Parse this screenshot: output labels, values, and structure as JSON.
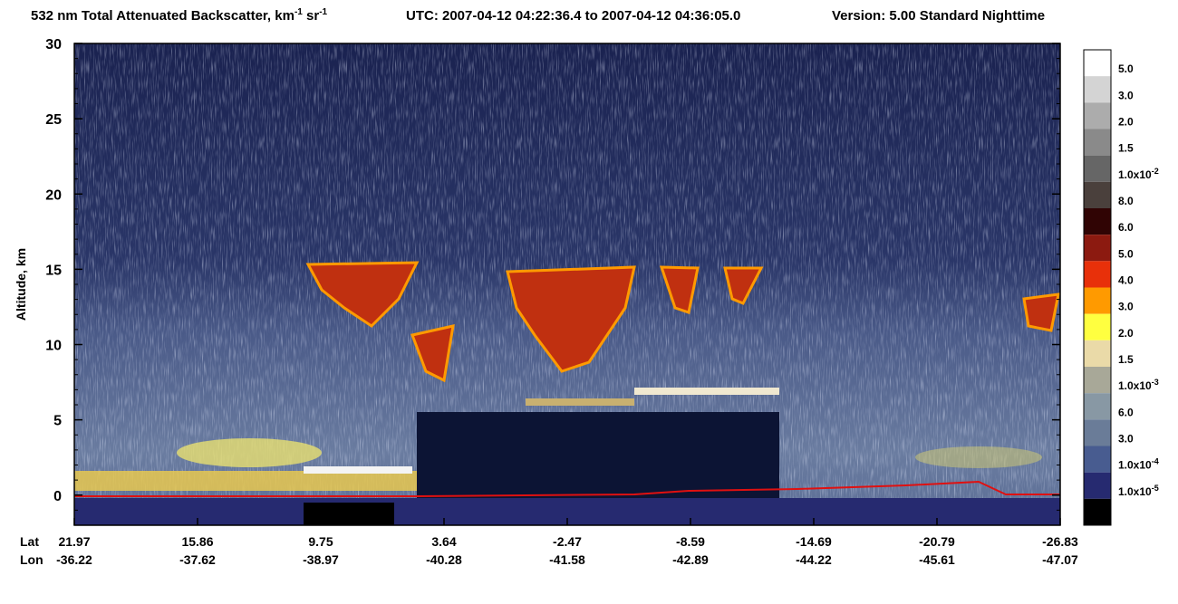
{
  "chart_data": {
    "type": "curtain",
    "title": [
      "532 nm Total Attenuated Backscatter, km",
      "-1",
      " sr",
      "-1"
    ],
    "time_range": "UTC:  2007-04-12 04:22:36.4  to  2007-04-12 04:36:05.0",
    "version": "Version: 5.00  Standard  Nighttime",
    "y_label": "Altitude, km",
    "ylim": [
      -2,
      30
    ],
    "yticks": [
      0,
      5,
      10,
      15,
      20,
      25,
      30
    ],
    "x_row_labels": [
      "Lat",
      "Lon"
    ],
    "lat": [
      "21.97",
      "15.86",
      "9.75",
      "3.64",
      "-2.47",
      "-8.59",
      "-14.69",
      "-20.79",
      "-26.83"
    ],
    "lon": [
      "-36.22",
      "-37.62",
      "-38.97",
      "-40.28",
      "-41.58",
      "-42.89",
      "-44.22",
      "-45.61",
      "-47.07"
    ],
    "colorbar": {
      "colors": [
        "#ffffff",
        "#d4d4d4",
        "#acacac",
        "#8a8a8a",
        "#666666",
        "#4a403c",
        "#300404",
        "#8c1a10",
        "#e8300a",
        "#ff9a00",
        "#ffff40",
        "#eadaa8",
        "#a8a898",
        "#8898a4",
        "#6a7c98",
        "#485c90",
        "#262a70",
        "#000000"
      ],
      "labels": [
        {
          "text": "5.0"
        },
        {
          "text": "3.0"
        },
        {
          "text": "2.0"
        },
        {
          "text": "1.5"
        },
        {
          "text": "1.0x10",
          "sup": "-2"
        },
        {
          "text": "8.0"
        },
        {
          "text": "6.0"
        },
        {
          "text": "5.0"
        },
        {
          "text": "4.0"
        },
        {
          "text": "3.0"
        },
        {
          "text": "2.0"
        },
        {
          "text": "1.5"
        },
        {
          "text": "1.0x10",
          "sup": "-3"
        },
        {
          "text": "6.0"
        },
        {
          "text": "3.0"
        },
        {
          "text": "1.0x10",
          "sup": "-4"
        },
        {
          "text": "1.0x10",
          "sup": "-5"
        }
      ]
    }
  }
}
